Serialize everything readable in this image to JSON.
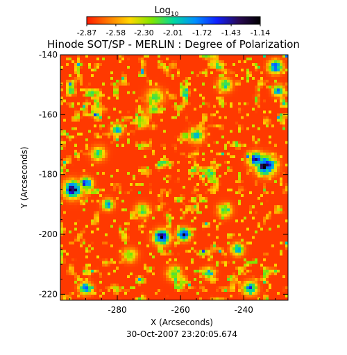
{
  "chart_data": {
    "type": "heatmap",
    "title": "Hinode SOT/SP - MERLIN : Degree of Polarization",
    "colorbar": {
      "label_main": "Log",
      "label_sub": "10",
      "ticks": [
        "-2.87",
        "-2.58",
        "-2.30",
        "-2.01",
        "-1.72",
        "-1.43",
        "-1.14"
      ],
      "range": [
        -2.87,
        -1.14
      ],
      "colors": [
        "#ff1a00",
        "#ff7a00",
        "#ffd800",
        "#7fe600",
        "#00d8a0",
        "#0090ff",
        "#1020ff",
        "#2a0a55",
        "#000000"
      ]
    },
    "xlabel": "X (Arcseconds)",
    "ylabel": "Y (Arcseconds)",
    "xlim": [
      -298,
      -226
    ],
    "ylim": [
      -222,
      -140
    ],
    "xticks": [
      "-280",
      "-260",
      "-240"
    ],
    "xtick_values": [
      -280,
      -260,
      -240
    ],
    "yticks": [
      "-140",
      "-160",
      "-180",
      "-200",
      "-220"
    ],
    "ytick_values": [
      -140,
      -160,
      -180,
      -200,
      -220
    ],
    "background_level": -2.8,
    "features": [
      {
        "x": -266,
        "y": -201,
        "peak": -1.2,
        "spread": 2.2
      },
      {
        "x": -259,
        "y": -200,
        "peak": -1.15,
        "spread": 1.8
      },
      {
        "x": -233,
        "y": -177,
        "peak": -1.25,
        "spread": 2.8
      },
      {
        "x": -236,
        "y": -175,
        "peak": -1.4,
        "spread": 2.2
      },
      {
        "x": -294,
        "y": -185,
        "peak": -1.35,
        "spread": 2.6
      },
      {
        "x": -290,
        "y": -183,
        "peak": -1.5,
        "spread": 1.8
      },
      {
        "x": -230,
        "y": -144,
        "peak": -1.55,
        "spread": 2.0
      },
      {
        "x": -229,
        "y": -152,
        "peak": -1.7,
        "spread": 1.6
      },
      {
        "x": -280,
        "y": -165,
        "peak": -1.7,
        "spread": 1.6
      },
      {
        "x": -283,
        "y": -190,
        "peak": -1.7,
        "spread": 1.6
      },
      {
        "x": -290,
        "y": -218,
        "peak": -1.55,
        "spread": 1.8
      },
      {
        "x": -242,
        "y": -205,
        "peak": -1.8,
        "spread": 1.8
      },
      {
        "x": -238,
        "y": -218,
        "peak": -1.6,
        "spread": 2.0
      },
      {
        "x": -251,
        "y": -213,
        "peak": -1.8,
        "spread": 1.6
      },
      {
        "x": -255,
        "y": -167,
        "peak": -1.9,
        "spread": 2.0
      },
      {
        "x": -246,
        "y": -150,
        "peak": -2.0,
        "spread": 2.0
      },
      {
        "x": -268,
        "y": -154,
        "peak": -2.1,
        "spread": 2.4
      },
      {
        "x": -272,
        "y": -192,
        "peak": -2.1,
        "spread": 2.0
      },
      {
        "x": -246,
        "y": -192,
        "peak": -2.1,
        "spread": 2.0
      },
      {
        "x": -262,
        "y": -213,
        "peak": -2.0,
        "spread": 2.0
      },
      {
        "x": -286,
        "y": -173,
        "peak": -2.0,
        "spread": 2.0
      },
      {
        "x": -276,
        "y": -207,
        "peak": -2.1,
        "spread": 2.0
      }
    ]
  },
  "footer": {
    "timestamp": "30-Oct-2007 23:20:05.674"
  }
}
